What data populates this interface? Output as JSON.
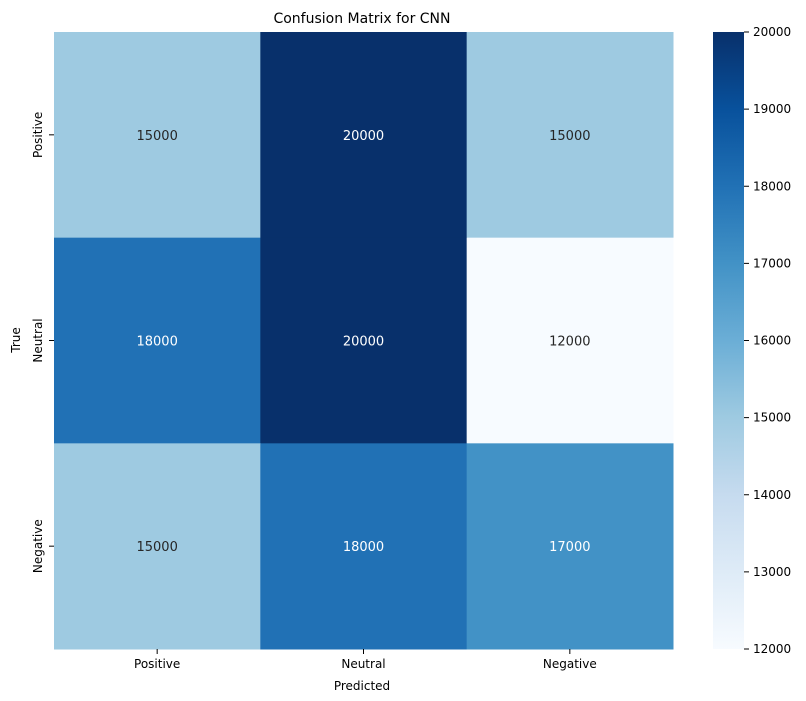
{
  "chart_data": {
    "type": "heatmap",
    "title": "Confusion Matrix for CNN",
    "xlabel": "Predicted",
    "ylabel": "True",
    "x_categories": [
      "Positive",
      "Neutral",
      "Negative"
    ],
    "y_categories": [
      "Positive",
      "Neutral",
      "Negative"
    ],
    "values": [
      [
        15000,
        20000,
        15000
      ],
      [
        18000,
        20000,
        12000
      ],
      [
        15000,
        18000,
        17000
      ]
    ],
    "colormap": "Blues",
    "vmin": 12000,
    "vmax": 20000,
    "colorbar_ticks": [
      12000,
      13000,
      14000,
      15000,
      16000,
      17000,
      18000,
      19000,
      20000
    ],
    "colorbar_tick_labels": [
      "12000",
      "13000",
      "14000",
      "15000",
      "16000",
      "17000",
      "18000",
      "19000",
      "20000"
    ]
  }
}
